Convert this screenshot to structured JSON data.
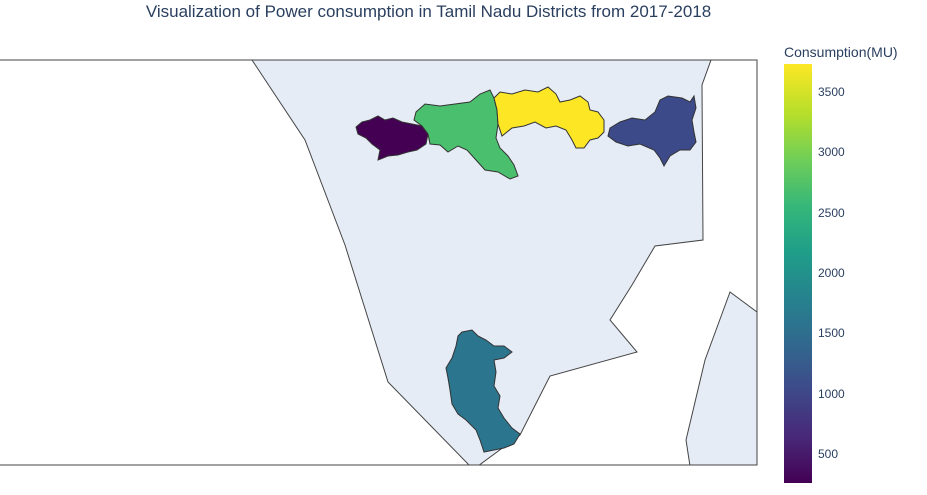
{
  "title": "Visualization of Power consumption in Tamil Nadu Districts from 2017-2018",
  "colorbar": {
    "title": "Consumption(MU)",
    "min": 270,
    "max": 3740,
    "ticks": [
      {
        "label": "3500",
        "value": 3500
      },
      {
        "label": "3000",
        "value": 3000
      },
      {
        "label": "2500",
        "value": 2500
      },
      {
        "label": "2000",
        "value": 2000
      },
      {
        "label": "1500",
        "value": 1500
      },
      {
        "label": "1000",
        "value": 1000
      },
      {
        "label": "500",
        "value": 500
      }
    ],
    "colorscale": "Viridis"
  },
  "map": {
    "land_color": "#e5ecf6",
    "outline_color": "#444444",
    "background": "#ffffff"
  },
  "districts": [
    {
      "id": "district-west",
      "value": 270
    },
    {
      "id": "district-central-west",
      "value": 2700
    },
    {
      "id": "district-central-east",
      "value": 3740
    },
    {
      "id": "district-east",
      "value": 1050
    },
    {
      "id": "district-south",
      "value": 1600
    }
  ]
}
